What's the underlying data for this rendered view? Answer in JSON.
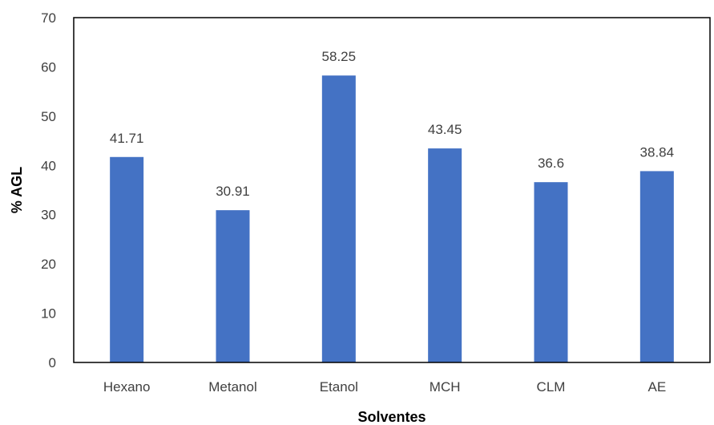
{
  "chart_data": {
    "type": "bar",
    "title": "",
    "xlabel": "Solventes",
    "ylabel": "% AGL",
    "categories": [
      "Hexano",
      "Metanol",
      "Etanol",
      "MCH",
      "CLM",
      "AE"
    ],
    "values": [
      41.71,
      30.91,
      58.25,
      43.45,
      36.6,
      38.84
    ],
    "value_labels": [
      "41.71",
      "30.91",
      "58.25",
      "43.45",
      "36.6",
      "38.84"
    ],
    "ylim": [
      0,
      70
    ],
    "yticks": [
      "0",
      "10",
      "20",
      "30",
      "40",
      "50",
      "60",
      "70"
    ],
    "grid": false,
    "legend": "none",
    "colors": {
      "bar": "#4472C4",
      "axis": "#000000",
      "text": "#404040"
    }
  }
}
